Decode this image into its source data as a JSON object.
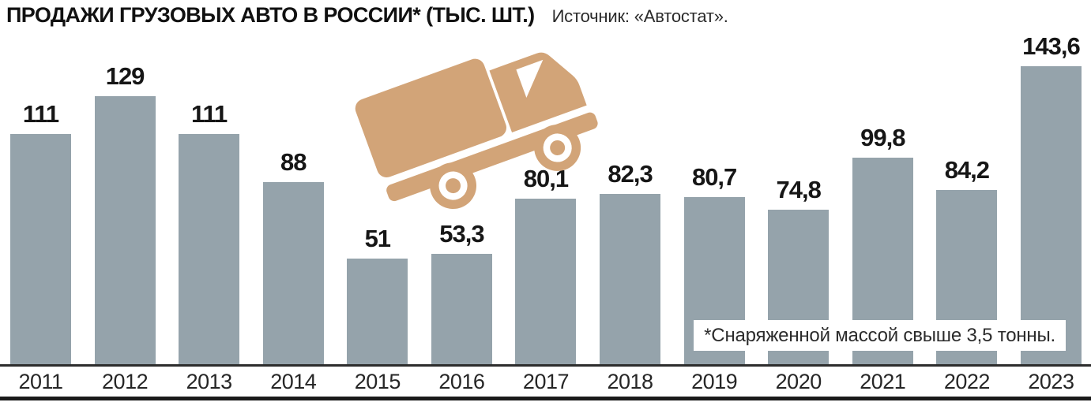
{
  "header": {
    "title": "ПРОДАЖИ ГРУЗОВЫХ АВТО В РОССИИ* (ТЫС. ШТ.)",
    "source": "Источник: «Автостат»."
  },
  "footnote": "*Снаряженной массой свыше 3,5 тонны.",
  "chart_data": {
    "type": "bar",
    "title": "ПРОДАЖИ ГРУЗОВЫХ АВТО В РОССИИ* (ТЫС. ШТ.)",
    "source": "Источник: «Автостат».",
    "unit": "тыс. шт.",
    "categories": [
      "2011",
      "2012",
      "2013",
      "2014",
      "2015",
      "2016",
      "2017",
      "2018",
      "2019",
      "2020",
      "2021",
      "2022",
      "2023"
    ],
    "values": [
      111,
      129,
      111,
      88,
      51,
      53.3,
      80.1,
      82.3,
      80.7,
      74.8,
      99.8,
      84.2,
      143.6
    ],
    "value_labels": [
      "111",
      "129",
      "111",
      "88",
      "51",
      "53,3",
      "80,1",
      "82,3",
      "80,7",
      "74,8",
      "99,8",
      "84,2",
      "143,6"
    ],
    "ylim": [
      0,
      150
    ],
    "grid": false,
    "legend": false,
    "bar_color": "#95a3ab",
    "annotation": "*Снаряженной массой свыше 3,5 тонны."
  },
  "icons": {
    "truck_icon": "cargo-truck tilted upward",
    "truck_color": "#d2a478"
  },
  "colors": {
    "background": "#ffffff",
    "bar": "#95a3ab",
    "title_text": "#111111",
    "value_text": "#161616",
    "year_text": "#262626",
    "axis_line": "#2c2c2c",
    "bottom_rule": "#1a1a1a",
    "footnote_bg": "#ffffff",
    "footnote_text": "#2b2b2b"
  }
}
